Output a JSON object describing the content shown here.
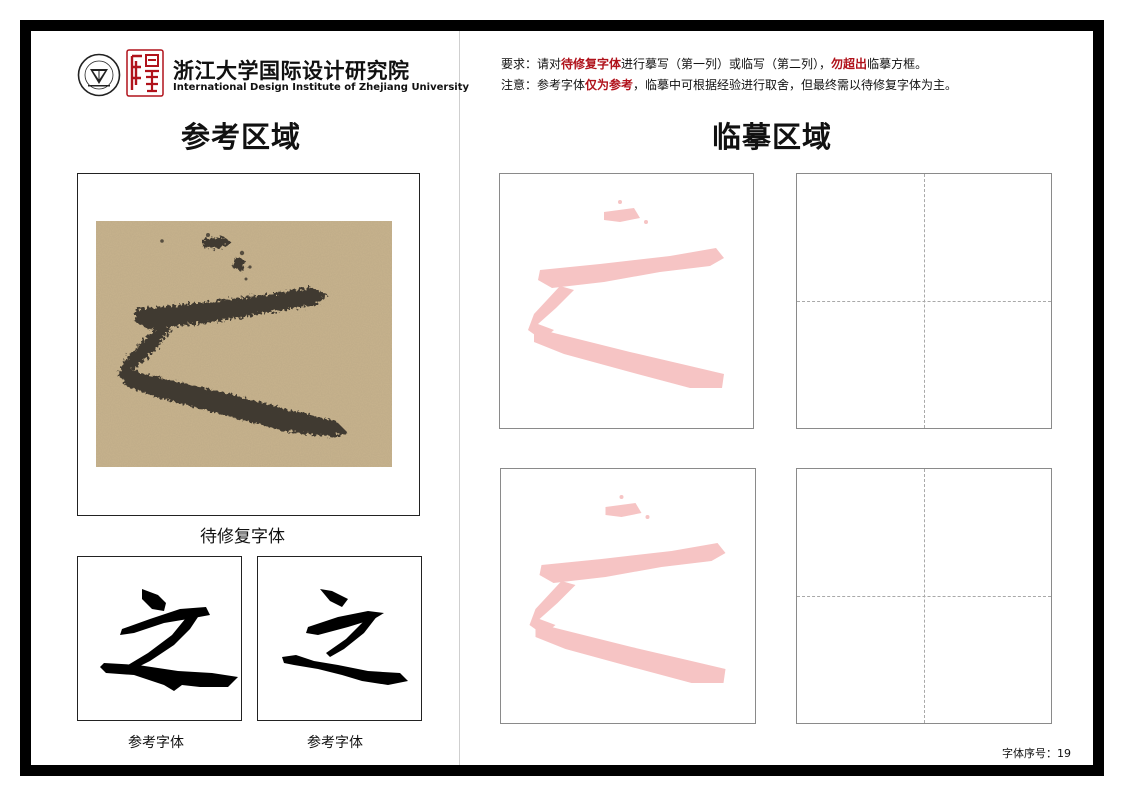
{
  "institute": {
    "name_cn": "浙江大学国际设计研究院",
    "name_en": "International Design Institute of Zhejiang University",
    "emblem_icon": "university-emblem-icon",
    "seal_icon": "red-seal-logo-icon",
    "brand_color": "#b0121b"
  },
  "reference": {
    "title": "参考区域",
    "damaged_caption": "待修复字体",
    "ref1_caption": "参考字体",
    "ref2_caption": "参考字体",
    "character": "之",
    "paper_color": "#c9b48e"
  },
  "copy_area": {
    "title": "临摹区域",
    "trace_color": "#f6c4c4",
    "requirement": {
      "prefix": "要求：请对",
      "highlight1": "待修复字体",
      "middle": "进行摹写（第一列）或临写（第二列），",
      "highlight2": "勿超出",
      "suffix": "临摹方框。"
    },
    "note": {
      "prefix": "注意：参考字体",
      "highlight": "仅为参考",
      "suffix": "，临摹中可根据经验进行取舍，但最终需以待修复字体为主。"
    }
  },
  "footer": {
    "index_label": "字体序号：",
    "index_value": "19"
  }
}
